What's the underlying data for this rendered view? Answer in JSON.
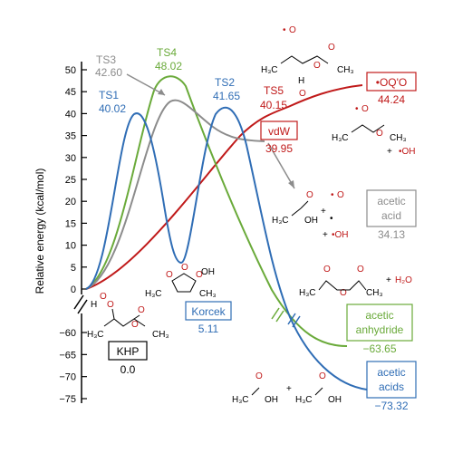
{
  "chart_data": {
    "type": "line",
    "ylabel": "Relative energy (kcal/mol)",
    "yticks_upper": [
      0,
      5,
      10,
      15,
      20,
      25,
      30,
      35,
      40,
      45,
      50
    ],
    "yticks_lower": [
      -60,
      -65,
      -70,
      -75
    ],
    "axis_break": true,
    "colors": {
      "blue": "#2f6db5",
      "green": "#6aaa3a",
      "red": "#c01a1a",
      "gray": "#8c8c8c",
      "black": "#000000"
    },
    "transition_states": [
      {
        "id": "TS1",
        "value": "40.02",
        "color": "blue"
      },
      {
        "id": "TS2",
        "value": "41.65",
        "color": "blue"
      },
      {
        "id": "TS3",
        "value": "42.60",
        "color": "gray"
      },
      {
        "id": "TS4",
        "value": "48.02",
        "color": "green"
      },
      {
        "id": "TS5",
        "value": "40.15",
        "color": "red"
      }
    ],
    "species": [
      {
        "id": "KHP",
        "label": "KHP",
        "value": "0.0",
        "color": "black"
      },
      {
        "id": "Korcek",
        "label": "Korcek",
        "value": "5.11",
        "color": "blue"
      },
      {
        "id": "vdW",
        "label": "vdW",
        "value": "39.95",
        "color": "red"
      },
      {
        "id": "OQO",
        "label": "•OQ'O",
        "value": "44.24",
        "color": "red"
      },
      {
        "id": "acetic_acid_radical",
        "label_lines": [
          "acetic",
          "acid"
        ],
        "value": "34.13",
        "color": "gray"
      },
      {
        "id": "acetic_anhydride",
        "label_lines": [
          "acetic",
          "anhydride"
        ],
        "value": "−63.65",
        "color": "green"
      },
      {
        "id": "acetic_acids",
        "label_lines": [
          "acetic",
          "acids"
        ],
        "value": "−73.32",
        "color": "blue"
      }
    ],
    "series": [
      {
        "color": "blue",
        "from": "KHP",
        "via": [
          "TS1",
          "Korcek",
          "TS2"
        ],
        "to": "acetic_acids"
      },
      {
        "color": "green",
        "from": "KHP",
        "via": [
          "TS4"
        ],
        "to": "acetic_anhydride"
      },
      {
        "color": "gray",
        "from": "KHP",
        "via": [
          "TS3"
        ],
        "to": "acetic_acid_radical"
      },
      {
        "color": "red",
        "from": "KHP",
        "via": [
          "TS5",
          "vdW"
        ],
        "to": "OQO"
      }
    ],
    "molecule_text": {
      "plus": "+",
      "oh_radical": "•OH",
      "h2o": "H₂O",
      "h3c": "H₃C",
      "ch3": "CH₃",
      "oh": "OH",
      "o": "O",
      "h": "H",
      "dot": "•"
    }
  }
}
